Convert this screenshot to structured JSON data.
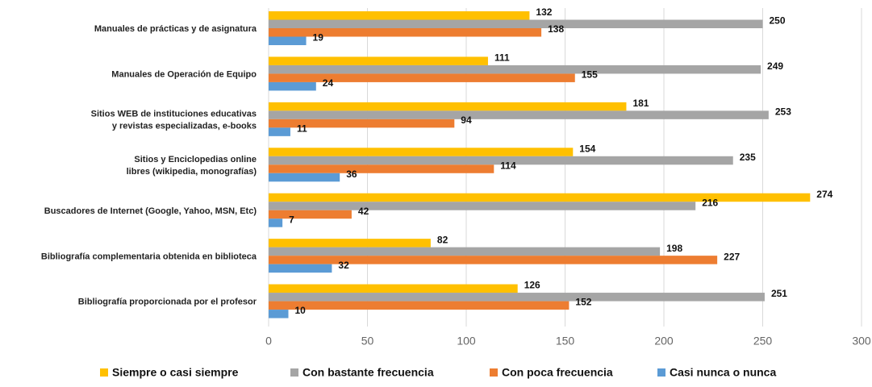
{
  "chart_data": {
    "type": "bar",
    "orientation": "horizontal",
    "categories": [
      "Manuales de prácticas y de asignatura",
      "Manuales de Operación de Equipo",
      "Sitios WEB de instituciones educativas\ny revistas especializadas, e-books",
      "Sitios y Enciclopedias online\nlibres (wikipedia, monografías)",
      "Buscadores de Internet (Google, Yahoo, MSN, Etc)",
      "Bibliografía complementaria obtenida en biblioteca",
      "Bibliografía proporcionada por el profesor"
    ],
    "series": [
      {
        "name": "Siempre o casi siempre",
        "color": "#ffc000",
        "values": [
          132,
          111,
          181,
          154,
          274,
          82,
          126
        ]
      },
      {
        "name": "Con bastante frecuencia",
        "color": "#a5a5a5",
        "values": [
          250,
          249,
          253,
          235,
          216,
          198,
          251
        ]
      },
      {
        "name": "Con poca frecuencia",
        "color": "#ed7d31",
        "values": [
          138,
          155,
          94,
          114,
          42,
          227,
          152
        ]
      },
      {
        "name": "Casi nunca o nunca",
        "color": "#5b9bd5",
        "values": [
          19,
          24,
          11,
          36,
          7,
          32,
          10
        ]
      }
    ],
    "xlim": [
      0,
      300
    ],
    "xticks": [
      0,
      50,
      100,
      150,
      200,
      250,
      300
    ],
    "grid": true,
    "legend": "bottom"
  }
}
